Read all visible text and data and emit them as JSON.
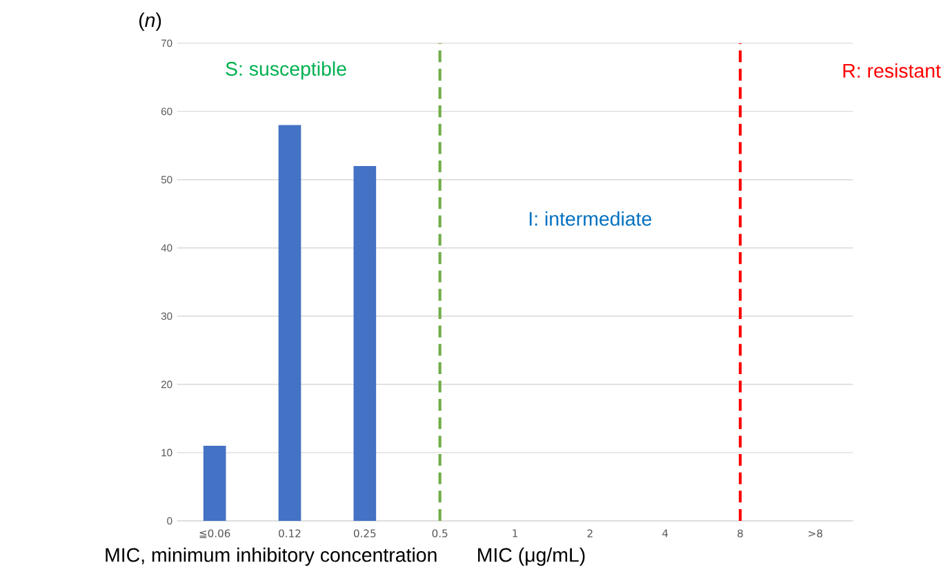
{
  "chart_data": {
    "type": "bar",
    "ylabel": "(*n*)",
    "xlabel": "MIC (μg/mL)",
    "categories": [
      "≦0.06",
      "0.12",
      "0.25",
      "0.5",
      "1",
      "2",
      "4",
      "8",
      ">8"
    ],
    "values": [
      11,
      58,
      52,
      0,
      0,
      0,
      0,
      0,
      0
    ],
    "color": "#4472c4",
    "ylim": [
      0,
      70
    ],
    "yticks": [
      0,
      10,
      20,
      30,
      40,
      50,
      60,
      70
    ],
    "grid": "y",
    "ref_lines": [
      {
        "axis": "x",
        "value": "0.5",
        "color": "#70ad47",
        "line_style": "dashed"
      },
      {
        "axis": "x",
        "value": "8",
        "color": "#ff0000",
        "line_style": "dashed"
      }
    ],
    "annotations": [
      "S: susceptible",
      "I: intermediate",
      "R: resistant",
      "MIC, minimum inhibitory concentration"
    ]
  }
}
